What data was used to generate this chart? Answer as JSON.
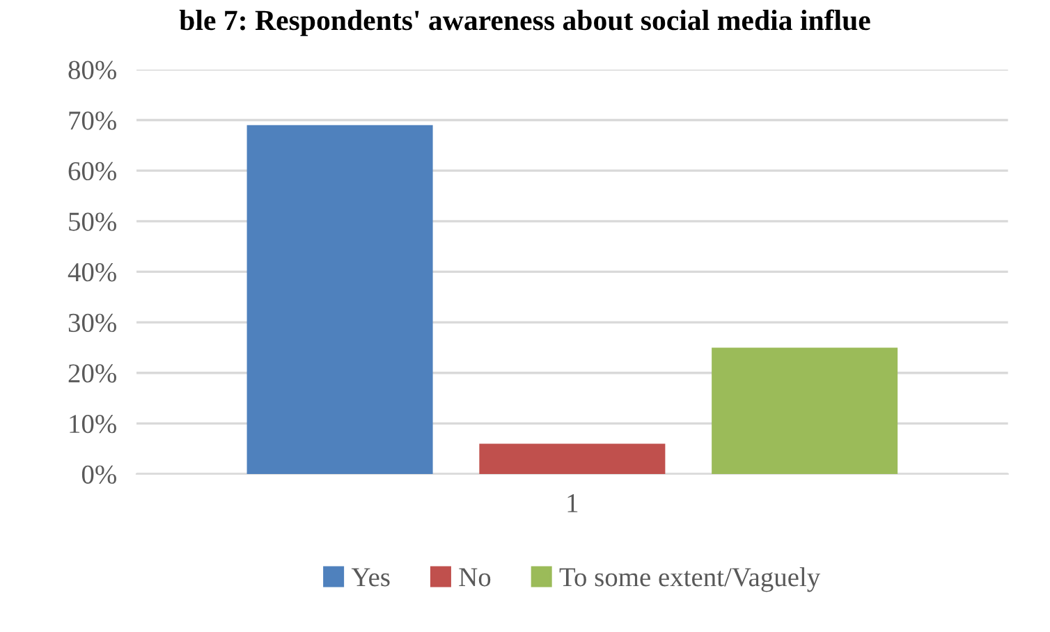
{
  "chart_data": {
    "type": "bar",
    "title": "ble 7: Respondents' awareness about social media influe",
    "categories": [
      "1"
    ],
    "series": [
      {
        "name": "Yes",
        "color": "#4f81bd",
        "values": [
          0.69
        ]
      },
      {
        "name": "No",
        "color": "#c0504d",
        "values": [
          0.06
        ]
      },
      {
        "name": "To some extent/Vaguely",
        "color": "#9bbb59",
        "values": [
          0.25
        ]
      }
    ],
    "ylim": [
      0,
      0.8
    ],
    "yticks": [
      {
        "value": 0,
        "label": "0%"
      },
      {
        "value": 0.1,
        "label": "10%"
      },
      {
        "value": 0.2,
        "label": "20%"
      },
      {
        "value": 0.3,
        "label": "30%"
      },
      {
        "value": 0.4,
        "label": "40%"
      },
      {
        "value": 0.5,
        "label": "50%"
      },
      {
        "value": 0.6,
        "label": "60%"
      },
      {
        "value": 0.7,
        "label": "70%"
      },
      {
        "value": 0.8,
        "label": "80%"
      }
    ],
    "grid": "y",
    "legend": "bottom"
  }
}
